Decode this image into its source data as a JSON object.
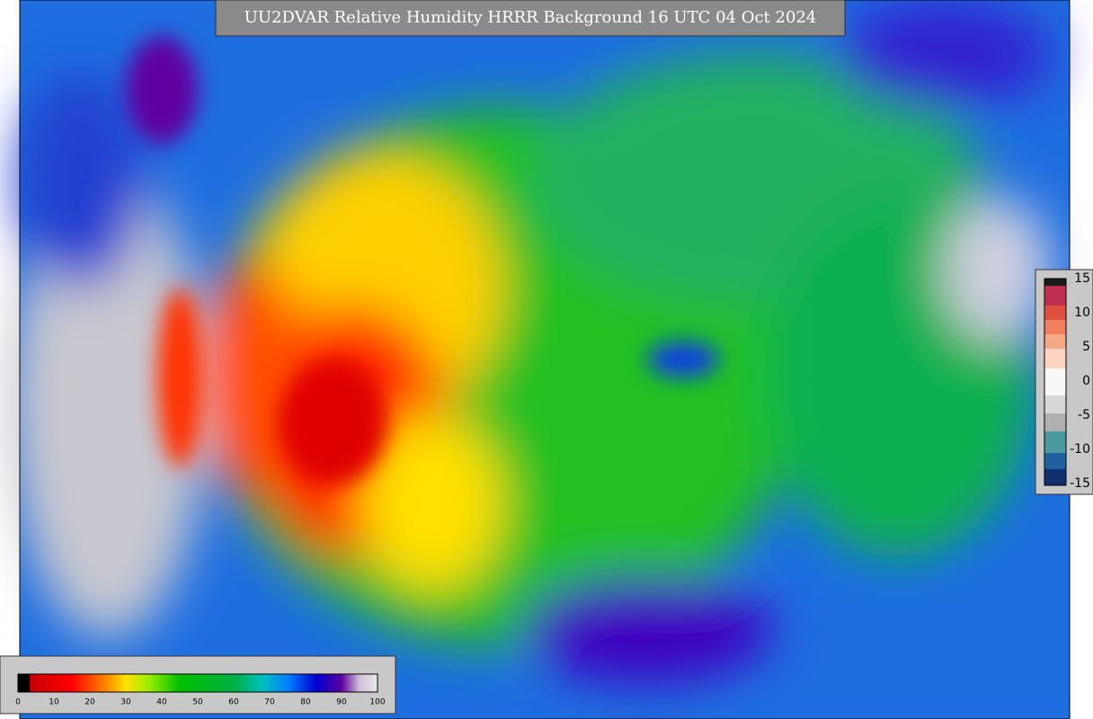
{
  "header": {
    "title": "UU2DVAR Relative Humidity HRRR Background  16 UTC 04 Oct 2024"
  },
  "colorbar": {
    "ticks": [
      0,
      10,
      20,
      30,
      40,
      50,
      60,
      70,
      80,
      90,
      100
    ]
  },
  "side_colorbar": {
    "ticks": [
      15,
      10,
      5,
      0,
      -5,
      -10,
      -15
    ]
  }
}
